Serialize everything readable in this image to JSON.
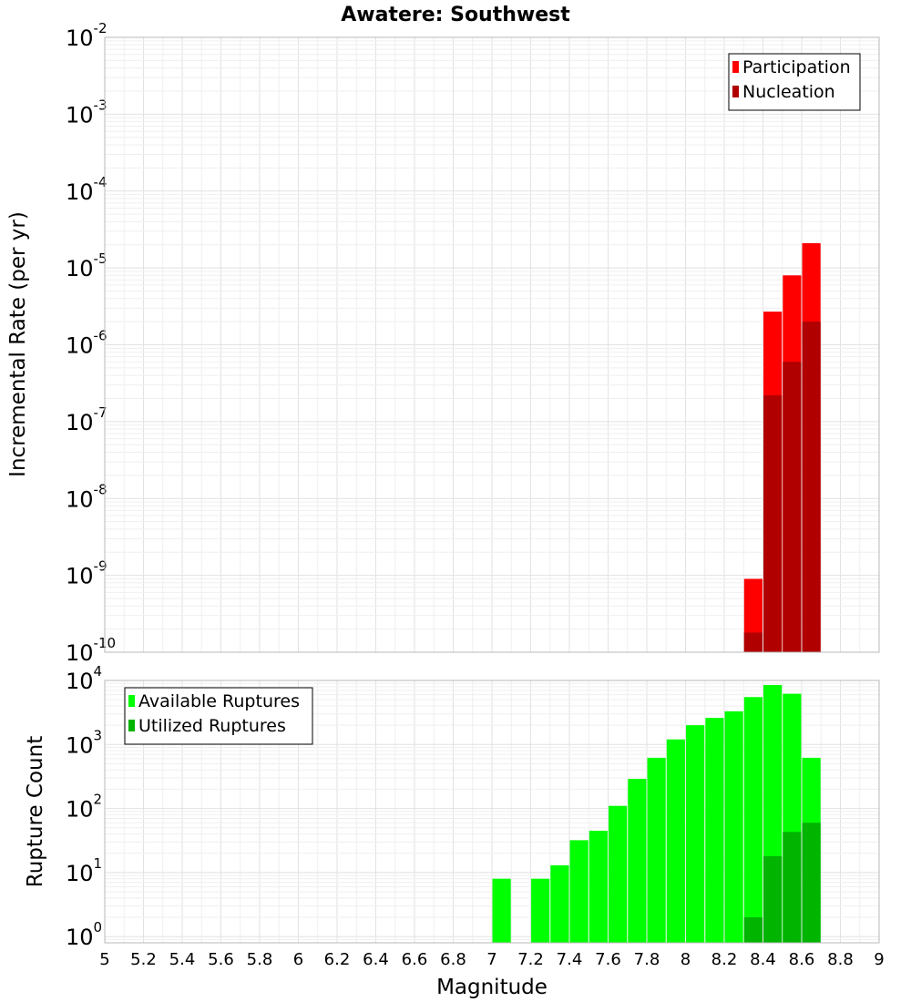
{
  "chart_data": [
    {
      "type": "bar",
      "title": "Awatere: Southwest",
      "ylabel": "Incremental Rate (per yr)",
      "xlabel": "",
      "y_scale": "log",
      "ylim": [
        1e-10,
        0.01
      ],
      "xlim": [
        5,
        9
      ],
      "y_tick_mantissa": "10",
      "y_ticks": [
        {
          "exp": "-10"
        },
        {
          "exp": "-9"
        },
        {
          "exp": "-8"
        },
        {
          "exp": "-7"
        },
        {
          "exp": "-6"
        },
        {
          "exp": "-5"
        },
        {
          "exp": "-4"
        },
        {
          "exp": "-3"
        },
        {
          "exp": "-2"
        }
      ],
      "legend": {
        "position": "top-right",
        "items": [
          {
            "label": "Participation",
            "color": "#ff0000"
          },
          {
            "label": "Nucleation",
            "color": "#b00000"
          }
        ]
      },
      "grid": true,
      "bar_width": 0.095,
      "series": [
        {
          "name": "Participation",
          "color": "#ff0000",
          "x": [
            8.35,
            8.45,
            8.55,
            8.65
          ],
          "values": [
            9e-10,
            2.7e-06,
            8e-06,
            2.1e-05
          ]
        },
        {
          "name": "Nucleation",
          "color": "#b00000",
          "x": [
            8.35,
            8.45,
            8.55,
            8.65
          ],
          "values": [
            1.8e-10,
            2.2e-07,
            6e-07,
            2e-06
          ]
        }
      ]
    },
    {
      "type": "bar",
      "title": "",
      "ylabel": "Rupture Count",
      "xlabel": "Magnitude",
      "y_scale": "log",
      "ylim": [
        0.8,
        10000
      ],
      "xlim": [
        5,
        9
      ],
      "y_tick_mantissa": "10",
      "y_ticks": [
        {
          "exp": "0"
        },
        {
          "exp": "1"
        },
        {
          "exp": "2"
        },
        {
          "exp": "3"
        },
        {
          "exp": "4"
        }
      ],
      "x_ticks": [
        "5",
        "5.2",
        "5.4",
        "5.6",
        "5.8",
        "6",
        "6.2",
        "6.4",
        "6.6",
        "6.8",
        "7",
        "7.2",
        "7.4",
        "7.6",
        "7.8",
        "8",
        "8.2",
        "8.4",
        "8.6",
        "8.8",
        "9"
      ],
      "legend": {
        "position": "top-left",
        "items": [
          {
            "label": "Available Ruptures",
            "color": "#00ff00"
          },
          {
            "label": "Utilized Ruptures",
            "color": "#00b400"
          }
        ]
      },
      "grid": true,
      "bar_width": 0.095,
      "series": [
        {
          "name": "Available Ruptures",
          "color": "#00ff00",
          "x": [
            7.05,
            7.25,
            7.35,
            7.45,
            7.55,
            7.65,
            7.75,
            7.85,
            7.95,
            8.05,
            8.15,
            8.25,
            8.35,
            8.45,
            8.55,
            8.65
          ],
          "values": [
            8,
            8,
            13,
            32,
            45,
            110,
            290,
            620,
            1200,
            2000,
            2600,
            3300,
            5500,
            8500,
            6200,
            620
          ]
        },
        {
          "name": "Utilized Ruptures",
          "color": "#00b400",
          "x": [
            8.35,
            8.45,
            8.55,
            8.65
          ],
          "values": [
            2,
            18,
            43,
            60
          ]
        }
      ]
    }
  ]
}
